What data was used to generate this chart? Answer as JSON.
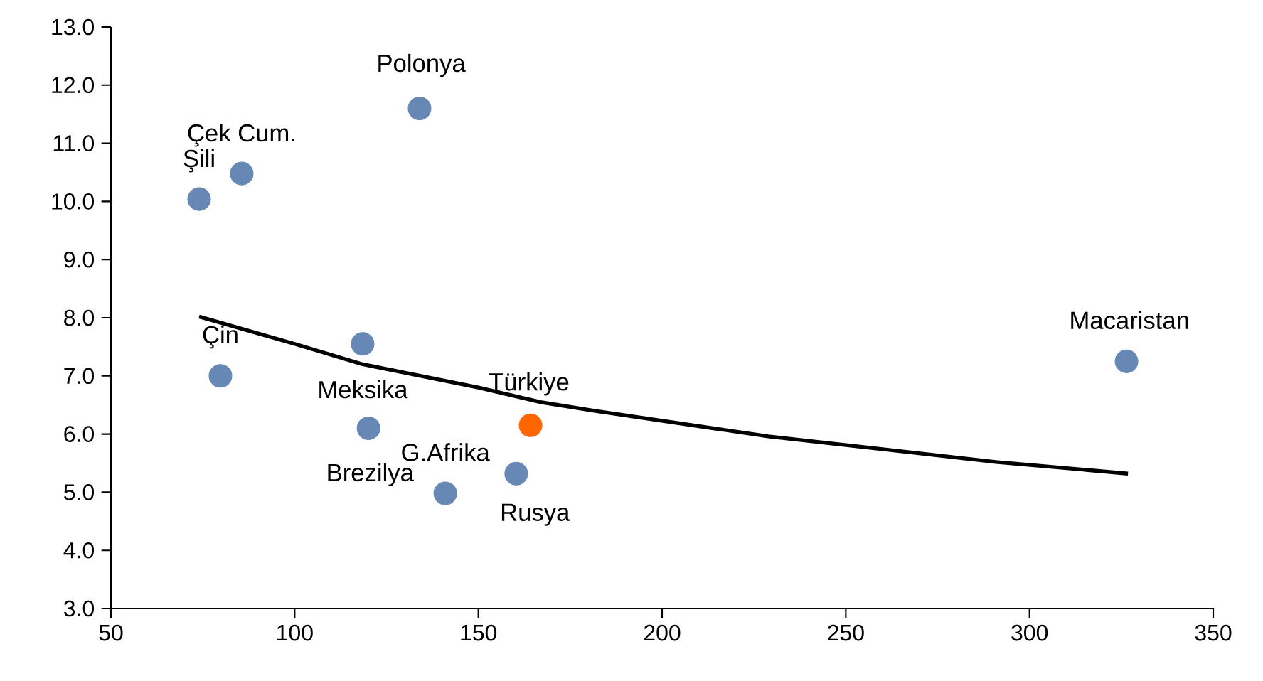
{
  "chart_data": {
    "type": "scatter",
    "marker": "circle",
    "xlim": [
      50,
      350
    ],
    "xticks": [
      50,
      100,
      150,
      200,
      250,
      300,
      350
    ],
    "ylim": [
      3,
      13
    ],
    "yticks": [
      {
        "value": 3,
        "label": "3.0"
      },
      {
        "value": 4,
        "label": "4.0"
      },
      {
        "value": 5,
        "label": "5.0"
      },
      {
        "value": 6,
        "label": "6.0"
      },
      {
        "value": 7,
        "label": "7.0"
      },
      {
        "value": 8,
        "label": "8.0"
      },
      {
        "value": 9,
        "label": "9.0"
      },
      {
        "value": 10,
        "label": "10.0"
      },
      {
        "value": 11,
        "label": "11.0"
      },
      {
        "value": 12,
        "label": "12.0"
      },
      {
        "value": 13,
        "label": "13.0"
      }
    ],
    "grid": false,
    "series": [
      {
        "type": "line",
        "color": "#000000",
        "marker": "none",
        "x": [
          74,
          100,
          118.5,
          150,
          166.9,
          181.6,
          228.9,
          260,
          290.8,
          326.8
        ],
        "values": [
          8.02,
          7.55,
          7.2,
          6.8,
          6.55,
          6.4,
          5.96,
          5.74,
          5.52,
          5.32
        ]
      },
      {
        "color": "#6788b4",
        "x": [
          74,
          85.6,
          134,
          79.8,
          118.5,
          120.1,
          141,
          160.3,
          326.4
        ],
        "values": [
          10.04,
          10.48,
          11.6,
          7.0,
          7.55,
          6.1,
          4.98,
          5.32,
          7.25
        ]
      },
      {
        "color": "#ff6600",
        "x": [
          164.2
        ],
        "values": [
          6.15
        ]
      }
    ],
    "annotations": [
      "Polonya",
      "Çek Cum.",
      "Şili",
      "Çin",
      "Meksika",
      "Türkiye",
      "G.Afrika",
      "Brezilya",
      "Rusya",
      "Macaristan"
    ]
  }
}
